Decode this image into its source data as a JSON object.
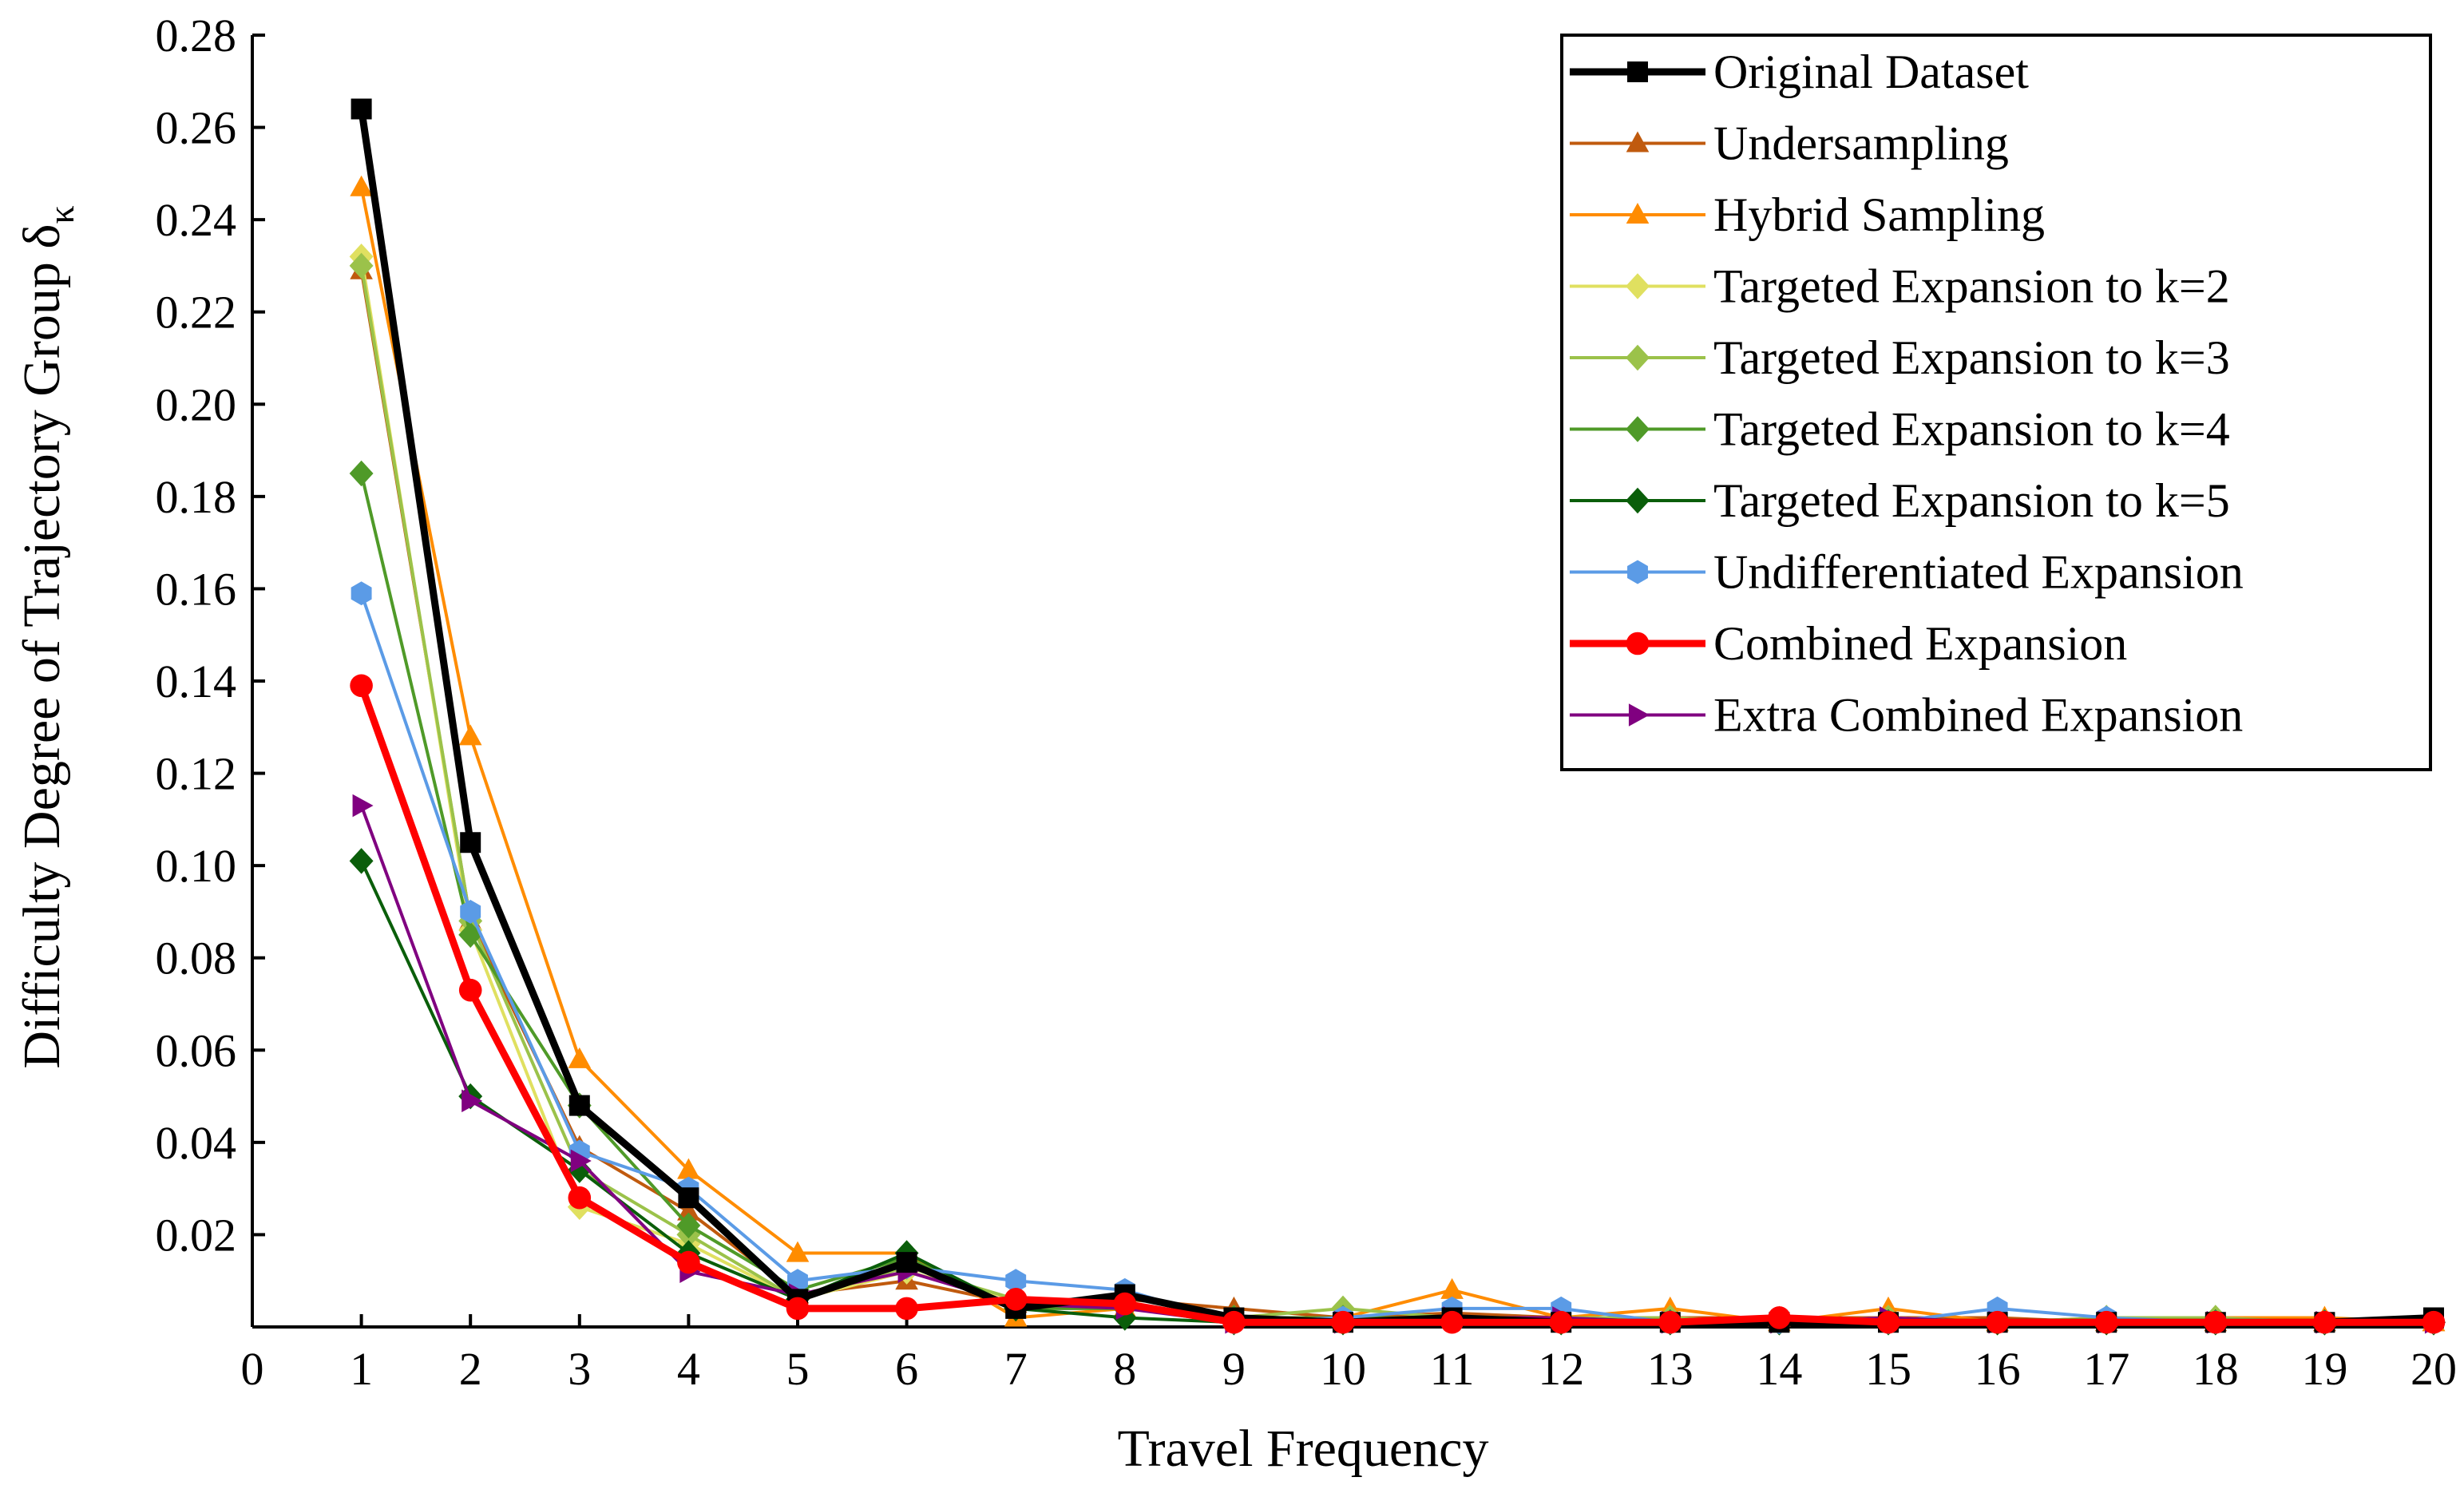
{
  "chart_data": {
    "type": "line",
    "xlabel": "Travel Frequency",
    "ylabel": "Difficulty Degree of Trajectory Group",
    "ylabel_symbol": "δ",
    "ylabel_subscript": "κ",
    "xlim": [
      0,
      20
    ],
    "ylim": [
      0,
      0.28
    ],
    "x_ticks": [
      "0",
      "1",
      "2",
      "3",
      "4",
      "5",
      "6",
      "7",
      "8",
      "9",
      "10",
      "11",
      "12",
      "13",
      "14",
      "15",
      "16",
      "17",
      "18",
      "19",
      "20"
    ],
    "y_ticks": [
      "0.02",
      "0.04",
      "0.06",
      "0.08",
      "0.10",
      "0.12",
      "0.14",
      "0.16",
      "0.18",
      "0.20",
      "0.22",
      "0.24",
      "0.26",
      "0.28"
    ],
    "y_tick_values": [
      0.02,
      0.04,
      0.06,
      0.08,
      0.1,
      0.12,
      0.14,
      0.16,
      0.18,
      0.2,
      0.22,
      0.24,
      0.26,
      0.28
    ],
    "grid": false,
    "legend_position": "top-right",
    "x": [
      1,
      2,
      3,
      4,
      5,
      6,
      7,
      8,
      9,
      10,
      11,
      12,
      13,
      14,
      15,
      16,
      17,
      18,
      19,
      20
    ],
    "series": [
      {
        "name": "Original Dataset",
        "color": "#000000",
        "marker": "square",
        "emphasis": true,
        "values": [
          0.264,
          0.105,
          0.048,
          0.028,
          0.006,
          0.014,
          0.004,
          0.007,
          0.002,
          0.001,
          0.002,
          0.001,
          0.001,
          0.001,
          0.001,
          0.001,
          0.001,
          0.001,
          0.001,
          0.002
        ]
      },
      {
        "name": "Undersampling",
        "color": "#C05A0E",
        "marker": "triangle-up",
        "emphasis": false,
        "values": [
          0.229,
          0.088,
          0.039,
          0.025,
          0.007,
          0.01,
          0.005,
          0.006,
          0.004,
          0.002,
          0.003,
          0.002,
          0.002,
          0.002,
          0.002,
          0.002,
          0.001,
          0.001,
          0.001,
          0.001
        ]
      },
      {
        "name": "Hybrid Sampling",
        "color": "#FF8C00",
        "marker": "triangle-up",
        "emphasis": false,
        "values": [
          0.247,
          0.128,
          0.058,
          0.034,
          0.016,
          0.016,
          0.002,
          0.004,
          0.002,
          0.002,
          0.008,
          0.002,
          0.004,
          0.001,
          0.004,
          0.001,
          0.002,
          0.002,
          0.002,
          0.001
        ]
      },
      {
        "name": "Targeted Expansion to k=2",
        "color": "#E0E060",
        "marker": "diamond",
        "emphasis": false,
        "values": [
          0.232,
          0.086,
          0.026,
          0.018,
          0.006,
          0.012,
          0.006,
          0.005,
          0.002,
          0.002,
          0.002,
          0.002,
          0.002,
          0.001,
          0.002,
          0.001,
          0.001,
          0.001,
          0.001,
          0.001
        ]
      },
      {
        "name": "Targeted Expansion to k=3",
        "color": "#9BC24A",
        "marker": "diamond",
        "emphasis": false,
        "values": [
          0.23,
          0.088,
          0.034,
          0.02,
          0.006,
          0.013,
          0.006,
          0.005,
          0.002,
          0.004,
          0.002,
          0.002,
          0.002,
          0.001,
          0.002,
          0.001,
          0.002,
          0.002,
          0.001,
          0.001
        ]
      },
      {
        "name": "Targeted Expansion to k=4",
        "color": "#4F9A28",
        "marker": "diamond",
        "emphasis": false,
        "values": [
          0.185,
          0.085,
          0.048,
          0.022,
          0.008,
          0.015,
          0.004,
          0.004,
          0.002,
          0.002,
          0.002,
          0.002,
          0.001,
          0.001,
          0.001,
          0.001,
          0.001,
          0.001,
          0.001,
          0.001
        ]
      },
      {
        "name": "Targeted Expansion to k=5",
        "color": "#0A5E0A",
        "marker": "diamond",
        "emphasis": false,
        "values": [
          0.101,
          0.05,
          0.034,
          0.016,
          0.006,
          0.016,
          0.004,
          0.002,
          0.001,
          0.001,
          0.002,
          0.001,
          0.001,
          0.001,
          0.001,
          0.001,
          0.001,
          0.001,
          0.001,
          0.001
        ]
      },
      {
        "name": "Undifferentiated Expansion",
        "color": "#5B9BE6",
        "marker": "hexagon",
        "emphasis": false,
        "values": [
          0.159,
          0.09,
          0.038,
          0.03,
          0.01,
          0.013,
          0.01,
          0.008,
          0.001,
          0.002,
          0.004,
          0.004,
          0.001,
          0.001,
          0.001,
          0.004,
          0.002,
          0.001,
          0.001,
          0.001
        ]
      },
      {
        "name": "Combined Expansion",
        "color": "#FF0000",
        "marker": "circle",
        "emphasis": true,
        "values": [
          0.139,
          0.073,
          0.028,
          0.014,
          0.004,
          0.004,
          0.006,
          0.005,
          0.001,
          0.001,
          0.001,
          0.001,
          0.001,
          0.002,
          0.001,
          0.001,
          0.001,
          0.001,
          0.001,
          0.001
        ]
      },
      {
        "name": "Extra Combined Expansion",
        "color": "#800080",
        "marker": "triangle-right",
        "emphasis": false,
        "values": [
          0.113,
          0.049,
          0.036,
          0.012,
          0.007,
          0.012,
          0.005,
          0.004,
          0.001,
          0.001,
          0.002,
          0.002,
          0.001,
          0.001,
          0.002,
          0.001,
          0.001,
          0.001,
          0.001,
          0.001
        ]
      }
    ]
  }
}
